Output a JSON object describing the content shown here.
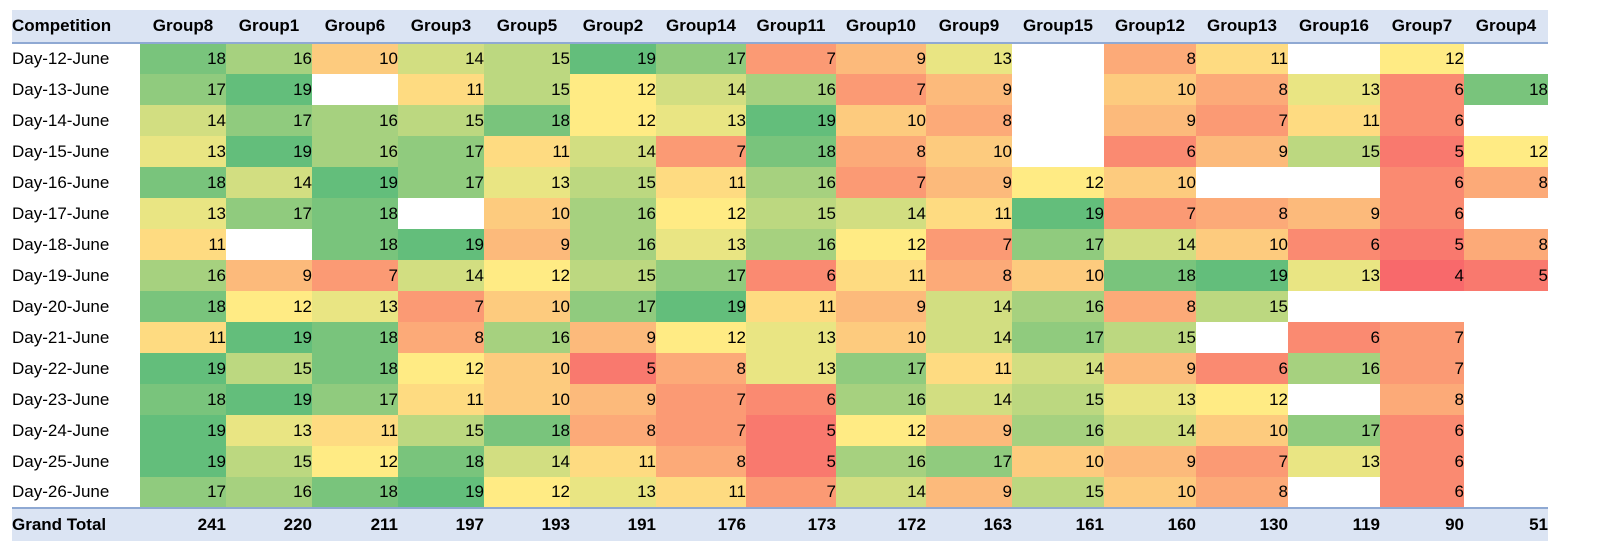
{
  "chart_data": {
    "type": "heatmap",
    "corner_label": "Competition",
    "total_label": "Grand Total",
    "columns": [
      "Group8",
      "Group1",
      "Group6",
      "Group3",
      "Group5",
      "Group2",
      "Group14",
      "Group11",
      "Group10",
      "Group9",
      "Group15",
      "Group12",
      "Group13",
      "Group16",
      "Group7",
      "Group4"
    ],
    "rows": [
      "Day-12-June",
      "Day-13-June",
      "Day-14-June",
      "Day-15-June",
      "Day-16-June",
      "Day-17-June",
      "Day-18-June",
      "Day-19-June",
      "Day-20-June",
      "Day-21-June",
      "Day-22-June",
      "Day-23-June",
      "Day-24-June",
      "Day-25-June",
      "Day-26-June"
    ],
    "values": [
      [
        18,
        16,
        10,
        14,
        15,
        19,
        17,
        7,
        9,
        13,
        null,
        8,
        11,
        null,
        12,
        null
      ],
      [
        17,
        19,
        null,
        11,
        15,
        12,
        14,
        16,
        7,
        9,
        null,
        10,
        8,
        13,
        6,
        18
      ],
      [
        14,
        17,
        16,
        15,
        18,
        12,
        13,
        19,
        10,
        8,
        null,
        9,
        7,
        11,
        6,
        null
      ],
      [
        13,
        19,
        16,
        17,
        11,
        14,
        7,
        18,
        8,
        10,
        null,
        6,
        9,
        15,
        5,
        12
      ],
      [
        18,
        14,
        19,
        17,
        13,
        15,
        11,
        16,
        7,
        9,
        12,
        10,
        null,
        null,
        6,
        8
      ],
      [
        13,
        17,
        18,
        null,
        10,
        16,
        12,
        15,
        14,
        11,
        19,
        7,
        8,
        9,
        6,
        null
      ],
      [
        11,
        null,
        18,
        19,
        9,
        16,
        13,
        16,
        12,
        7,
        17,
        14,
        10,
        6,
        5,
        8
      ],
      [
        16,
        9,
        7,
        14,
        12,
        15,
        17,
        6,
        11,
        8,
        10,
        18,
        19,
        13,
        4,
        5
      ],
      [
        18,
        12,
        13,
        7,
        10,
        17,
        19,
        11,
        9,
        14,
        16,
        8,
        15,
        null,
        null,
        null
      ],
      [
        11,
        19,
        18,
        8,
        16,
        9,
        12,
        13,
        10,
        14,
        17,
        15,
        null,
        6,
        7,
        null
      ],
      [
        19,
        15,
        18,
        12,
        10,
        5,
        8,
        13,
        17,
        11,
        14,
        9,
        6,
        16,
        7,
        null
      ],
      [
        18,
        19,
        17,
        11,
        10,
        9,
        7,
        6,
        16,
        14,
        15,
        13,
        12,
        null,
        8,
        null
      ],
      [
        19,
        13,
        11,
        15,
        18,
        8,
        7,
        5,
        12,
        9,
        16,
        14,
        10,
        17,
        6,
        null
      ],
      [
        19,
        15,
        12,
        18,
        14,
        11,
        8,
        5,
        16,
        17,
        10,
        9,
        7,
        13,
        6,
        null
      ],
      [
        17,
        16,
        18,
        19,
        12,
        13,
        11,
        7,
        14,
        9,
        15,
        10,
        8,
        null,
        6,
        null
      ]
    ],
    "totals": [
      241,
      220,
      211,
      197,
      193,
      191,
      176,
      173,
      172,
      163,
      161,
      160,
      130,
      119,
      90,
      51
    ],
    "color_scale": {
      "min": 4,
      "mid": 12,
      "max": 19,
      "min_color": "#f8696b",
      "mid_color": "#ffeb84",
      "max_color": "#63be7b"
    }
  }
}
